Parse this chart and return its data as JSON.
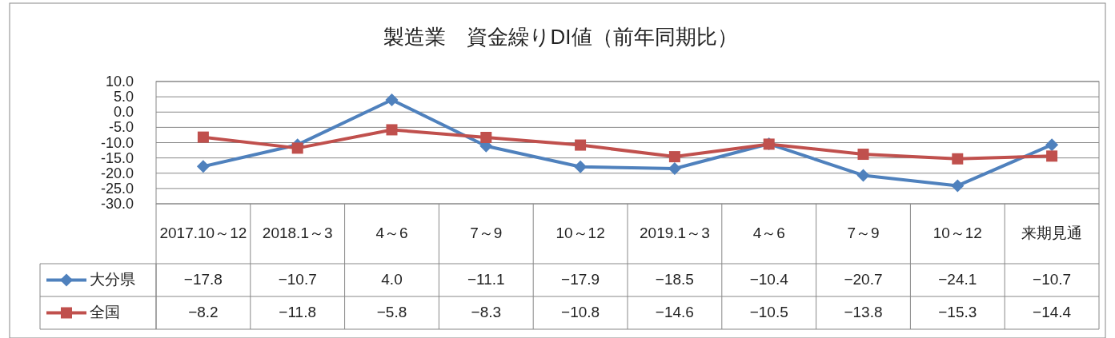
{
  "chart_data": {
    "type": "line",
    "title": "製造業　資金繰りDI値（前年同期比）",
    "categories": [
      "2017.10～12",
      "2018.1～3",
      "4～6",
      "7～9",
      "10～12",
      "2019.1～3",
      "4～6",
      "7～9",
      "10～12",
      "来期見通"
    ],
    "series": [
      {
        "name": "大分県",
        "color": "#4f81bd",
        "marker": "diamond",
        "values": [
          -17.8,
          -10.7,
          4.0,
          -11.1,
          -17.9,
          -18.5,
          -10.4,
          -20.7,
          -24.1,
          -10.7
        ],
        "value_labels": [
          "−17.8",
          "−10.7",
          "4.0",
          "−11.1",
          "−17.9",
          "−18.5",
          "−10.4",
          "−20.7",
          "−24.1",
          "−10.7"
        ]
      },
      {
        "name": "全国",
        "color": "#c0504d",
        "marker": "square",
        "values": [
          -8.2,
          -11.8,
          -5.8,
          -8.3,
          -10.8,
          -14.6,
          -10.5,
          -13.8,
          -15.3,
          -14.4
        ],
        "value_labels": [
          "−8.2",
          "−11.8",
          "−5.8",
          "−8.3",
          "−10.8",
          "−14.6",
          "−10.5",
          "−13.8",
          "−15.3",
          "−14.4"
        ]
      }
    ],
    "ylim": [
      -30,
      10
    ],
    "yticks": [
      {
        "value": 10,
        "label": "10.0"
      },
      {
        "value": 5,
        "label": "5.0"
      },
      {
        "value": 0,
        "label": "0.0"
      },
      {
        "value": -5,
        "label": "-5.0"
      },
      {
        "value": -10,
        "label": "-10.0"
      },
      {
        "value": -15,
        "label": "-15.0"
      },
      {
        "value": -20,
        "label": "-20.0"
      },
      {
        "value": -25,
        "label": "-25.0"
      },
      {
        "value": -30,
        "label": "-30.0"
      }
    ],
    "grid": "y",
    "legend": "bottom left",
    "line_style": "solid"
  }
}
